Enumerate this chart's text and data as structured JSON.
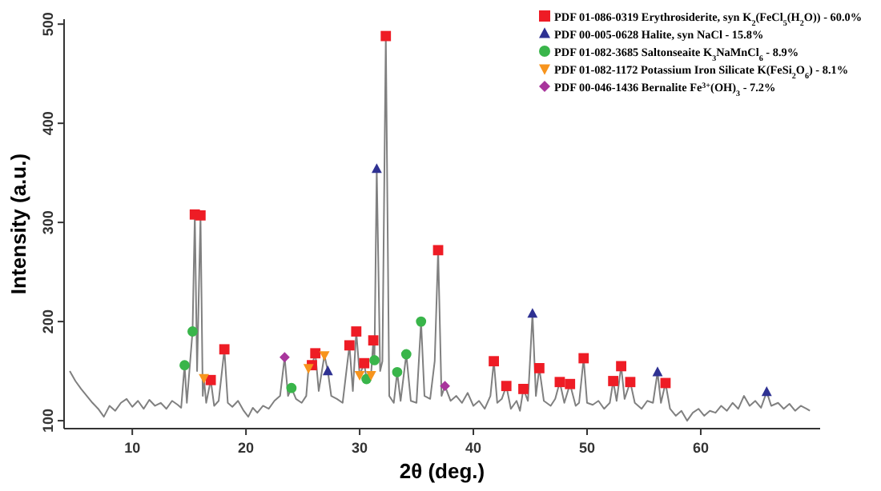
{
  "chart_data": {
    "type": "line",
    "xlabel": "2θ (deg.)",
    "ylabel": "Intensity (a.u.)",
    "xlim": [
      4,
      70.5
    ],
    "ylim": [
      92,
      505
    ],
    "xticks": [
      10,
      20,
      30,
      40,
      50,
      60
    ],
    "yticks": [
      100,
      200,
      300,
      400,
      500
    ],
    "grid": false,
    "legend": "top right",
    "series": [
      {
        "color": "#808080",
        "marker": "none",
        "x": [
          4.5,
          5,
          5.5,
          6,
          6.5,
          7,
          7.5,
          8,
          8.5,
          9,
          9.5,
          10,
          10.5,
          11,
          11.5,
          12,
          12.5,
          13,
          13.5,
          14,
          14.3,
          14.6,
          14.8,
          15.3,
          15.5,
          15.7,
          16.0,
          16.2,
          16.3,
          16.5,
          16.9,
          17.2,
          17.6,
          18.1,
          18.4,
          18.8,
          19.3,
          19.8,
          20.2,
          20.6,
          21,
          21.5,
          22,
          22.5,
          23,
          23.4,
          23.7,
          24.0,
          24.4,
          24.9,
          25.3,
          25.5,
          25.8,
          26.1,
          26.4,
          26.9,
          27.2,
          27.5,
          28,
          28.5,
          29.1,
          29.4,
          29.7,
          30.0,
          30.4,
          30.6,
          31.0,
          31.2,
          31.3,
          31.5,
          31.8,
          32.0,
          32.3,
          32.6,
          33.0,
          33.3,
          33.6,
          34.1,
          34.5,
          35.0,
          35.4,
          35.7,
          36.2,
          36.6,
          36.9,
          37.2,
          37.5,
          38,
          38.5,
          39,
          39.5,
          40,
          40.5,
          41,
          41.5,
          41.8,
          42.1,
          42.5,
          42.9,
          43.3,
          43.8,
          44.1,
          44.4,
          44.8,
          45.2,
          45.5,
          45.8,
          46.2,
          46.8,
          47.2,
          47.6,
          48.0,
          48.5,
          49.0,
          49.3,
          49.7,
          50.0,
          50.5,
          51,
          51.5,
          52,
          52.3,
          52.6,
          53.0,
          53.3,
          53.8,
          54.2,
          54.8,
          55.3,
          55.8,
          56.2,
          56.5,
          56.9,
          57.3,
          57.8,
          58.3,
          58.8,
          59.3,
          59.8,
          60.3,
          60.8,
          61.3,
          61.8,
          62.3,
          62.8,
          63.3,
          63.8,
          64.3,
          64.8,
          65.3,
          65.8,
          66.2,
          66.8,
          67.3,
          67.8,
          68.3,
          68.8,
          69.3,
          69.6
        ],
        "values": [
          150,
          140,
          132,
          125,
          118,
          112,
          104,
          115,
          110,
          118,
          122,
          114,
          120,
          112,
          121,
          115,
          118,
          112,
          120,
          116,
          113,
          156,
          118,
          190,
          308,
          150,
          307,
          125,
          143,
          118,
          141,
          115,
          120,
          172,
          118,
          114,
          120,
          110,
          104,
          113,
          108,
          115,
          112,
          120,
          125,
          164,
          125,
          133,
          122,
          118,
          125,
          153,
          156,
          168,
          130,
          166,
          150,
          125,
          122,
          118,
          176,
          130,
          190,
          146,
          158,
          142,
          146,
          181,
          161,
          354,
          150,
          160,
          488,
          125,
          118,
          149,
          120,
          167,
          120,
          118,
          200,
          125,
          122,
          160,
          272,
          125,
          135,
          120,
          125,
          118,
          128,
          115,
          120,
          112,
          125,
          160,
          118,
          122,
          135,
          112,
          120,
          110,
          132,
          120,
          208,
          125,
          153,
          120,
          115,
          122,
          139,
          118,
          137,
          115,
          118,
          163,
          118,
          116,
          120,
          112,
          118,
          140,
          120,
          155,
          122,
          139,
          118,
          112,
          120,
          118,
          149,
          118,
          138,
          112,
          105,
          110,
          100,
          108,
          112,
          105,
          110,
          108,
          115,
          110,
          118,
          112,
          125,
          115,
          120,
          113,
          129,
          115,
          118,
          112,
          117,
          110,
          115,
          112,
          110
        ]
      },
      {
        "type": "scatter",
        "name": "PDF 01-086-0319 Erythrosiderite, syn K$_{2}$(FeCl$_{5}$(H$_{2}$O)) - 60.0%",
        "color": "#ee1c25",
        "marker": "square",
        "x": [
          15.5,
          16.0,
          16.9,
          18.1,
          25.8,
          26.1,
          29.1,
          29.7,
          30.4,
          31.2,
          32.3,
          36.9,
          41.8,
          42.9,
          44.4,
          45.8,
          47.6,
          48.5,
          49.7,
          52.3,
          53.0,
          53.8,
          56.9
        ],
        "values": [
          308,
          307,
          141,
          172,
          156,
          168,
          176,
          190,
          158,
          181,
          488,
          272,
          160,
          135,
          132,
          153,
          139,
          137,
          163,
          140,
          155,
          139,
          138
        ]
      },
      {
        "type": "scatter",
        "name": "PDF 00-005-0628 Halite, syn NaCl - 15.8%",
        "color": "#2e3192",
        "marker": "triangle",
        "x": [
          27.2,
          31.5,
          45.2,
          56.2,
          65.8
        ],
        "values": [
          150,
          354,
          208,
          149,
          129
        ]
      },
      {
        "type": "scatter",
        "name": "PDF 01-082-3685 Saltonseaite K$_{3}$NaMnCl$_{6}$ - 8.9%",
        "color": "#39b54a",
        "marker": "circle",
        "x": [
          14.6,
          15.3,
          24.0,
          30.6,
          31.3,
          33.3,
          34.1,
          35.4
        ],
        "values": [
          156,
          190,
          133,
          142,
          161,
          149,
          167,
          200
        ]
      },
      {
        "type": "scatter",
        "name": "PDF 01-082-1172 Potassium Iron Silicate K(FeSi$_{2}$O$_{6}$) - 8.1%",
        "color": "#f7941d",
        "marker": "triangle-down",
        "x": [
          16.3,
          25.5,
          26.9,
          30.0,
          31.0
        ],
        "values": [
          143,
          153,
          166,
          146,
          146
        ]
      },
      {
        "type": "scatter",
        "name": "PDF 00-046-1436 Bernalite Fe$^{3+}$(OH)$_{3}$ - 7.2%",
        "color": "#a8359c",
        "marker": "diamond",
        "x": [
          23.4,
          37.5
        ],
        "values": [
          164,
          135
        ]
      }
    ]
  }
}
